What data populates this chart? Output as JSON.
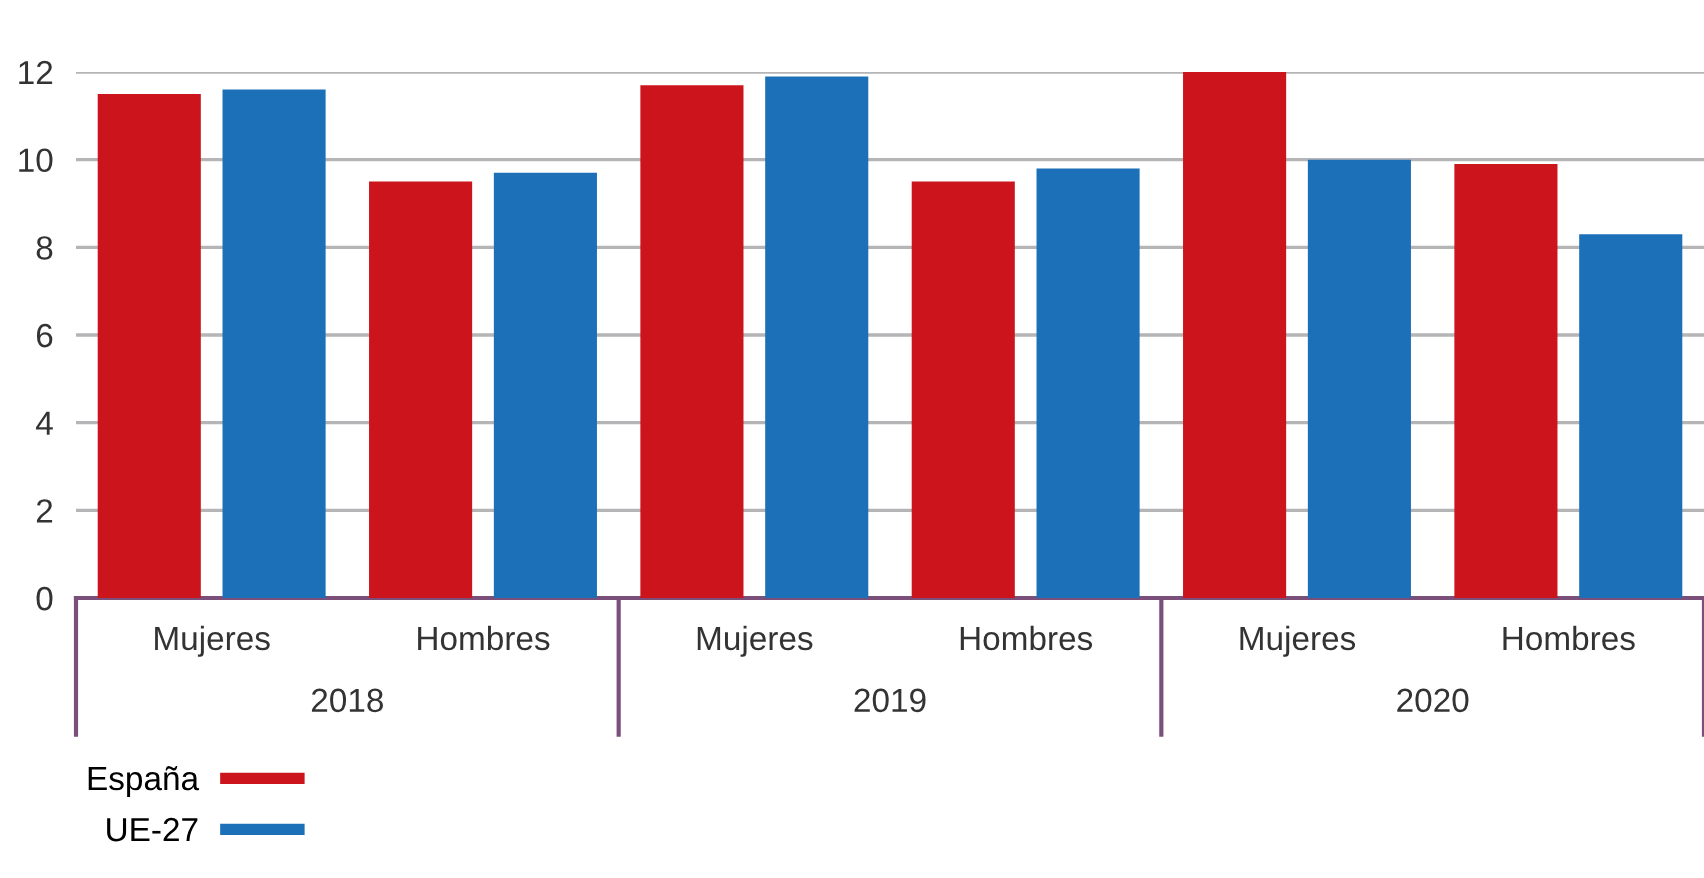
{
  "chart_data": {
    "type": "bar",
    "categories": [
      "Mujeres",
      "Hombres",
      "Mujeres",
      "Hombres",
      "Mujeres",
      "Hombres"
    ],
    "series": [
      {
        "name": "España",
        "color": "#cc141d",
        "values": [
          11.5,
          9.5,
          11.7,
          9.5,
          12.0,
          9.9
        ]
      },
      {
        "name": "UE-27",
        "color": "#1c70b8",
        "values": [
          11.6,
          9.7,
          11.9,
          9.8,
          10.0,
          8.3
        ]
      }
    ],
    "annotations": [
      "2018",
      "2019",
      "2020"
    ],
    "ylim": [
      0,
      12
    ],
    "yticks": [
      0,
      2,
      4,
      6,
      8,
      10,
      12
    ],
    "grid": "y",
    "legend": "bottom left"
  }
}
